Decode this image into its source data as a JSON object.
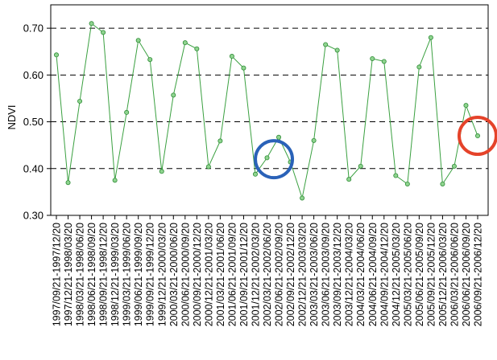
{
  "chart_data": {
    "type": "line",
    "ylabel": "NDVI",
    "xlabel": "",
    "title": "",
    "ylim": [
      0.3,
      0.75
    ],
    "yticks": [
      "0.30",
      "0.40",
      "0.50",
      "0.60",
      "0.70"
    ],
    "grid": "horizontal-dashed",
    "colors": {
      "line": "#3aa040",
      "marker_fill": "#8fd48f",
      "marker_edge": "#2e8b36",
      "circle_blue": "#2a62b8",
      "circle_red": "#e5432a"
    },
    "categories": [
      "1997/09/21-1997/12/20",
      "1997/12/21-1998/03/20",
      "1998/03/21-1998/06/20",
      "1998/06/21-1998/09/20",
      "1998/09/21-1998/12/20",
      "1998/12/21-1999/03/20",
      "1999/03/21-1999/06/20",
      "1999/06/21-1999/09/20",
      "1999/09/21-1999/12/20",
      "1999/12/21-2000/03/20",
      "2000/03/21-2000/06/20",
      "2000/06/21-2000/09/20",
      "2000/09/21-2000/12/20",
      "2000/12/21-2001/03/20",
      "2001/03/21-2001/06/20",
      "2001/06/21-2001/09/20",
      "2001/09/21-2001/12/20",
      "2001/12/21-2002/03/20",
      "2002/03/21-2002/06/20",
      "2002/06/21-2002/09/20",
      "2002/09/21-2002/12/20",
      "2002/12/21-2003/03/20",
      "2003/03/21-2003/06/20",
      "2003/06/21-2003/09/20",
      "2003/09/21-2003/12/20",
      "2003/12/21-2004/03/20",
      "2004/03/21-2004/06/20",
      "2004/06/21-2004/09/20",
      "2004/09/21-2004/12/20",
      "2004/12/21-2005/03/20",
      "2005/03/21-2005/06/20",
      "2005/06/21-2005/09/20",
      "2005/09/21-2005/12/20",
      "2005/12/21-2006/03/20",
      "2006/03/21-2006/06/20",
      "2006/06/21-2006/09/20",
      "2006/09/21-2006/12/20"
    ],
    "values": [
      0.643,
      0.37,
      0.544,
      0.71,
      0.691,
      0.375,
      0.52,
      0.674,
      0.633,
      0.394,
      0.557,
      0.669,
      0.656,
      0.404,
      0.459,
      0.64,
      0.615,
      0.388,
      0.423,
      0.467,
      0.414,
      0.337,
      0.46,
      0.665,
      0.653,
      0.377,
      0.405,
      0.635,
      0.629,
      0.385,
      0.367,
      0.617,
      0.68,
      0.367,
      0.405,
      0.535,
      0.47
    ],
    "highlights": [
      {
        "color": "blue",
        "center_index": 19,
        "center_value": 0.42
      },
      {
        "color": "red",
        "center_index": 36,
        "center_value": 0.47
      }
    ]
  }
}
